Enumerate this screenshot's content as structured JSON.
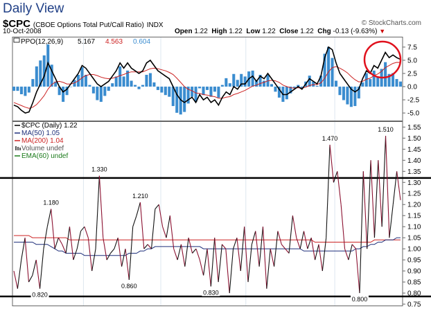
{
  "header": {
    "title": "Daily View",
    "symbol": "$CPC",
    "description": "(CBOE Options Total Put/Call Ratio)",
    "exchange": "INDX",
    "brand": "© StockCharts.com",
    "date": "10-Oct-2008",
    "open_label": "Open",
    "open": "1.22",
    "high_label": "High",
    "high": "1.22",
    "low_label": "Low",
    "low": "1.22",
    "close_label": "Close",
    "close": "1.22",
    "chg_label": "Chg",
    "chg": "-0.13 (-9.63%)"
  },
  "chart_data": [
    {
      "type": "line",
      "panel": "PPO",
      "legend": {
        "name": "PPO(12,26,9)",
        "v1": "5.167",
        "v2": "4.563",
        "v3": "0.604"
      },
      "colors": {
        "ppo": "#000000",
        "signal": "#cc2222",
        "histogram": "#3a8ccf"
      },
      "ylim": [
        -6.3,
        9.2
      ],
      "yticks": [
        "7.5",
        "5.0",
        "2.5",
        "0.0",
        "-2.5",
        "-5.0"
      ],
      "ytick_values": [
        7.5,
        5.0,
        2.5,
        0.0,
        -2.5,
        -5.0
      ],
      "series": [
        {
          "key": "ppo",
          "values": [
            -3.5,
            -3.8,
            -4.5,
            -5.0,
            -4.8,
            -3.0,
            -1.0,
            0.5,
            2.0,
            4.5,
            3.0,
            1.5,
            0.0,
            -1.0,
            -0.5,
            0.5,
            1.5,
            2.5,
            4.0,
            3.5,
            2.5,
            1.5,
            0.5,
            0.0,
            0.5,
            1.0,
            2.0,
            3.0,
            4.5,
            3.5,
            4.5,
            3.5,
            3.0,
            2.5,
            3.0,
            4.5,
            5.0,
            4.0,
            3.0,
            2.5,
            2.0,
            1.5,
            0.0,
            -1.5,
            -2.5,
            -3.0,
            -2.5,
            -2.0,
            -3.0,
            -1.5,
            -2.5,
            -2.0,
            -3.0,
            -2.5,
            -3.5,
            -2.0,
            -1.0,
            -1.5,
            0.0,
            -0.5,
            0.5,
            0.5,
            1.5,
            2.0,
            1.0,
            2.0,
            1.5,
            2.5,
            1.5,
            0.5,
            -0.5,
            -1.5,
            -1.5,
            -1.0,
            -0.5,
            0.0,
            -0.5,
            0.5,
            1.5,
            1.0,
            0.5,
            2.0,
            5.5,
            7.5,
            7.0,
            4.5,
            2.5,
            1.5,
            0.5,
            -0.5,
            -1.0,
            -0.5,
            1.5,
            3.0,
            2.5,
            4.0,
            3.5,
            5.0,
            6.5,
            5.5,
            6.0,
            5.5,
            5.167
          ]
        },
        {
          "key": "signal",
          "values": [
            -3.0,
            -3.3,
            -3.6,
            -3.9,
            -4.1,
            -3.9,
            -3.4,
            -2.6,
            -1.7,
            -0.5,
            0.4,
            0.9,
            1.0,
            0.8,
            0.5,
            0.5,
            0.7,
            1.1,
            1.7,
            2.1,
            2.3,
            2.3,
            2.1,
            1.8,
            1.6,
            1.5,
            1.6,
            1.8,
            2.1,
            2.3,
            2.6,
            2.8,
            2.8,
            2.8,
            2.8,
            3.1,
            3.4,
            3.5,
            3.4,
            3.2,
            3.0,
            2.7,
            2.3,
            1.6,
            0.8,
            0.0,
            -0.5,
            -0.8,
            -1.2,
            -1.3,
            -1.5,
            -1.6,
            -1.8,
            -1.9,
            -2.2,
            -2.2,
            -2.0,
            -1.9,
            -1.5,
            -1.3,
            -1.0,
            -0.7,
            -0.3,
            0.1,
            0.3,
            0.6,
            0.8,
            1.1,
            1.2,
            1.1,
            0.8,
            0.3,
            0.0,
            -0.2,
            -0.3,
            -0.2,
            -0.3,
            -0.1,
            0.2,
            0.4,
            0.4,
            0.7,
            1.6,
            2.8,
            3.6,
            3.8,
            3.5,
            3.1,
            2.6,
            1.9,
            1.3,
            0.9,
            1.0,
            1.4,
            1.6,
            2.1,
            2.4,
            2.9,
            3.6,
            4.0,
            4.4,
            4.6,
            4.563
          ]
        }
      ],
      "annotation": "red circle highlighting latest PPO values"
    },
    {
      "type": "line",
      "panel": "Price",
      "legend": [
        {
          "name": "$CPC (Daily) 1.22",
          "color": "#000000"
        },
        {
          "name": "MA(50) 1.05",
          "color": "#1f2f7a"
        },
        {
          "name": "MA(200) 1.04",
          "color": "#cc2222"
        },
        {
          "name": "Volume undef",
          "color": "#555555"
        },
        {
          "name": "EMA(60) undef",
          "color": "#1b7a1b"
        }
      ],
      "ylim": [
        0.75,
        1.57
      ],
      "yticks": [
        "1.55",
        "1.50",
        "1.45",
        "1.40",
        "1.35",
        "1.30",
        "1.25",
        "1.20",
        "1.15",
        "1.10",
        "1.05",
        "1.00",
        "0.95",
        "0.90",
        "0.85",
        "0.80",
        "0.75"
      ],
      "ytick_values": [
        1.55,
        1.5,
        1.45,
        1.4,
        1.35,
        1.3,
        1.25,
        1.2,
        1.15,
        1.1,
        1.05,
        1.0,
        0.95,
        0.9,
        0.85,
        0.8,
        0.75
      ],
      "horizontal_lines": [
        1.32,
        0.785
      ],
      "series": [
        {
          "key": "price",
          "name": "$CPC",
          "values": [
            0.9,
            0.82,
            0.95,
            1.05,
            0.85,
            0.88,
            0.95,
            0.82,
            1.0,
            1.1,
            1.18,
            1.0,
            1.05,
            1.02,
            0.98,
            1.1,
            0.95,
            1.0,
            1.08,
            1.1,
            1.05,
            0.9,
            1.0,
            1.33,
            1.05,
            0.95,
            0.98,
            1.0,
            1.05,
            0.92,
            1.0,
            0.86,
            1.1,
            1.15,
            1.21,
            1.0,
            1.02,
            1.0,
            1.18,
            1.2,
            1.1,
            1.05,
            1.15,
            1.0,
            0.95,
            1.02,
            0.92,
            1.05,
            0.98,
            1.0,
            0.95,
            0.88,
            1.0,
            0.83,
            1.05,
            0.85,
            1.02,
            1.0,
            0.8,
            1.0,
            1.05,
            0.9,
            1.1,
            0.85,
            1.02,
            1.08,
            0.92,
            1.1,
            0.82,
            1.0,
            0.92,
            1.08,
            1.02,
            1.0,
            0.98,
            1.15,
            1.05,
            1.0,
            1.08,
            1.0,
            1.05,
            0.95,
            1.02,
            0.9,
            1.05,
            1.47,
            1.3,
            1.35,
            1.2,
            1.0,
            0.95,
            1.02,
            1.0,
            0.8,
            1.35,
            1.0,
            1.4,
            1.05,
            1.4,
            1.1,
            1.51,
            1.05,
            1.2,
            1.35,
            1.22
          ]
        },
        {
          "key": "ma200",
          "name": "MA(200)",
          "values": [
            1.06,
            1.06,
            1.06,
            1.06,
            1.06,
            1.05,
            1.05,
            1.05,
            1.05,
            1.05,
            1.05,
            1.05,
            1.05,
            1.05,
            1.05,
            1.04,
            1.04,
            1.04,
            1.04,
            1.04,
            1.04,
            1.04,
            1.04,
            1.04,
            1.04,
            1.04,
            1.04,
            1.04,
            1.04,
            1.04,
            1.04,
            1.04,
            1.04,
            1.04,
            1.04,
            1.04,
            1.04,
            1.04,
            1.04,
            1.04,
            1.04,
            1.04,
            1.04,
            1.04,
            1.04,
            1.04,
            1.04,
            1.04,
            1.04,
            1.04,
            1.04,
            1.04,
            1.04,
            1.04,
            1.04,
            1.04,
            1.04,
            1.04,
            1.04,
            1.04,
            1.04,
            1.04,
            1.04,
            1.04,
            1.04,
            1.04,
            1.04,
            1.04,
            1.04,
            1.04,
            1.04,
            1.04,
            1.04,
            1.04,
            1.04,
            1.04,
            1.04,
            1.04,
            1.04,
            1.04,
            1.04,
            1.03,
            1.03,
            1.03,
            1.03,
            1.03,
            1.03,
            1.03,
            1.03,
            1.03,
            1.03,
            1.03,
            1.03,
            1.03,
            1.03,
            1.03,
            1.03,
            1.04,
            1.04,
            1.04,
            1.04,
            1.04,
            1.04,
            1.04,
            1.04
          ]
        },
        {
          "key": "ma50",
          "name": "MA(50)",
          "values": [
            1.03,
            1.03,
            1.03,
            1.03,
            1.03,
            1.03,
            1.02,
            1.02,
            1.02,
            1.02,
            1.01,
            1.0,
            0.99,
            0.99,
            0.98,
            0.98,
            0.98,
            0.98,
            0.98,
            0.97,
            0.97,
            0.97,
            0.97,
            0.97,
            0.97,
            0.97,
            0.97,
            0.97,
            0.97,
            0.97,
            0.97,
            0.98,
            0.98,
            0.98,
            0.99,
            0.99,
            1.0,
            1.0,
            1.01,
            1.01,
            1.01,
            1.01,
            1.01,
            1.01,
            1.01,
            1.01,
            1.01,
            1.01,
            1.01,
            1.01,
            1.01,
            1.0,
            1.0,
            1.0,
            1.0,
            1.0,
            1.0,
            1.0,
            1.0,
            1.0,
            1.0,
            1.0,
            1.0,
            1.0,
            1.0,
            1.0,
            1.0,
            1.0,
            1.0,
            1.0,
            1.0,
            1.0,
            1.0,
            1.0,
            1.0,
            1.0,
            1.0,
            1.0,
            0.99,
            0.99,
            0.99,
            0.99,
            0.99,
            0.99,
            0.99,
            0.99,
            0.99,
            0.99,
            0.99,
            0.99,
            0.99,
            0.99,
            1.0,
            1.0,
            1.01,
            1.01,
            1.02,
            1.02,
            1.03,
            1.03,
            1.04,
            1.04,
            1.04,
            1.05,
            1.05
          ]
        }
      ],
      "data_labels": [
        {
          "text": "1.180",
          "index": 10,
          "value": 1.18
        },
        {
          "text": "0.820",
          "index": 7,
          "value": 0.82
        },
        {
          "text": "1.330",
          "index": 23,
          "value": 1.33
        },
        {
          "text": "0.860",
          "index": 31,
          "value": 0.86
        },
        {
          "text": "1.210",
          "index": 34,
          "value": 1.21
        },
        {
          "text": "0.830",
          "index": 53,
          "value": 0.83
        },
        {
          "text": "1.470",
          "index": 85,
          "value": 1.47
        },
        {
          "text": "0.800",
          "index": 93,
          "value": 0.8
        },
        {
          "text": "1.510",
          "index": 100,
          "value": 1.51
        }
      ]
    }
  ]
}
